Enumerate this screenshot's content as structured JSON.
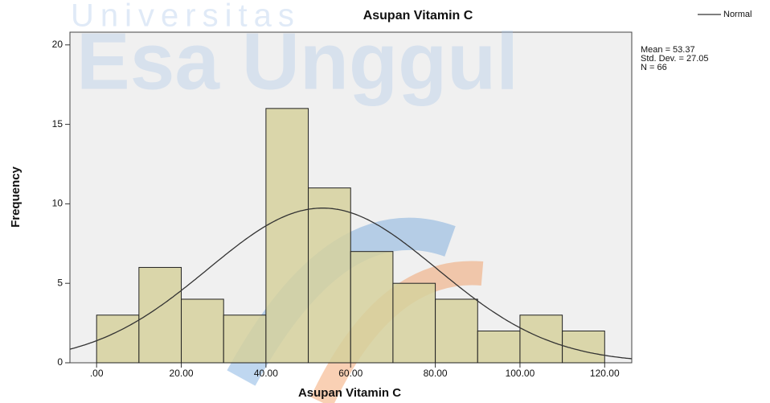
{
  "watermark": [
    "Universitas",
    "Esa Unggul"
  ],
  "chart_data": {
    "type": "histogram",
    "title": "Asupan Vitamin C",
    "x_label": "Asupan Vitamin C",
    "y_label": "Frequency",
    "bins": [
      0,
      10,
      20,
      30,
      40,
      50,
      60,
      70,
      80,
      90,
      100,
      110,
      120
    ],
    "values": [
      3,
      6,
      4,
      3,
      16,
      11,
      7,
      5,
      4,
      2,
      3,
      2
    ],
    "color": "#d6d19e",
    "edge_color": "#222222",
    "xlim": [
      -6.3,
      126.4
    ],
    "ylim": [
      0,
      20.8
    ],
    "xticks": [
      {
        "value": 0,
        "label": ".00"
      },
      {
        "value": 20,
        "label": "20.00"
      },
      {
        "value": 40,
        "label": "40.00"
      },
      {
        "value": 60,
        "label": "60.00"
      },
      {
        "value": 80,
        "label": "80.00"
      },
      {
        "value": 100,
        "label": "100.00"
      },
      {
        "value": 120,
        "label": "120.00"
      }
    ],
    "yticks": [
      0,
      5,
      10,
      15,
      20
    ],
    "normal": {
      "name": "Normal",
      "color": "#333333",
      "stats": [
        {
          "value": 53.37,
          "label": "Mean = 53.37"
        },
        {
          "value": 27.05,
          "label": "Std. Dev. = 27.05"
        },
        {
          "value": 66,
          "label": "N = 66"
        }
      ]
    }
  }
}
